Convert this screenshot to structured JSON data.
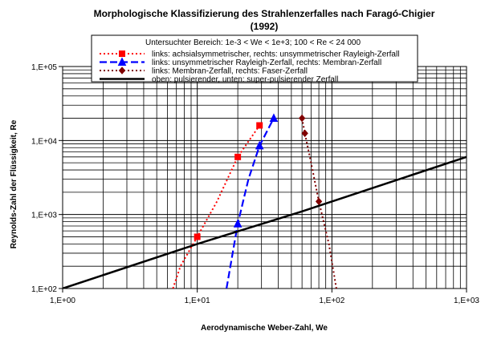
{
  "chart_data": {
    "type": "line",
    "title": "Morphologische Klassifizierung des Strahlenzerfalles nach Faragó-Chigier",
    "subtitle": "(1992)",
    "xlabel": "Aerodynamische Weber-Zahl,  We",
    "ylabel": "Reynolds-Zahl der Flüssigkeit,  Re",
    "xscale": "log",
    "yscale": "log",
    "xlim": [
      1,
      1000
    ],
    "ylim": [
      100,
      100000
    ],
    "xticks": [
      "1,E+00",
      "1,E+01",
      "1,E+02",
      "1,E+03"
    ],
    "yticks": [
      "1,E+02",
      "1,E+03",
      "1,E+04",
      "1,E+05"
    ],
    "grid": true,
    "legend_position": "top",
    "legend_note": "Untersuchter Bereich: 1e-3 < We < 1e+3; 100 < Re < 24 000",
    "series": [
      {
        "name": "links: achsialsymmetrischer, rechts: unsymmetrischer Rayleigh-Zerfall",
        "color": "#ff0000",
        "dash": "dotted",
        "marker": "square",
        "x": [
          6.6,
          7.5,
          10,
          14,
          20,
          29
        ],
        "y": [
          100,
          200,
          500,
          1500,
          6000,
          16000
        ],
        "markers_x": [
          10,
          20,
          29
        ],
        "markers_y": [
          500,
          6000,
          16000
        ]
      },
      {
        "name": "links: unsymmetrischer Rayleigh-Zerfall, rechts: Membran-Zerfall",
        "color": "#0000ff",
        "dash": "dashed",
        "marker": "triangle",
        "x": [
          16.5,
          20,
          24,
          29,
          37
        ],
        "y": [
          100,
          750,
          3000,
          8500,
          20000
        ],
        "markers_x": [
          20,
          29,
          37
        ],
        "markers_y": [
          750,
          8500,
          20000
        ]
      },
      {
        "name": "links: Membran-Zerfall, rechts: Faser-Zerfall",
        "color": "#800000",
        "dash": "dotted",
        "marker": "diamond",
        "x": [
          60,
          63,
          70,
          80,
          95,
          108
        ],
        "y": [
          20000,
          12500,
          5000,
          1500,
          400,
          100
        ],
        "markers_x": [
          60,
          63,
          80
        ],
        "markers_y": [
          20000,
          12500,
          1500
        ]
      },
      {
        "name": "oben: pulsierender, unten: super-pulsierender Zerfall",
        "color": "#000000",
        "dash": "solid",
        "marker": "none",
        "x": [
          1,
          10,
          60,
          100,
          1000
        ],
        "y": [
          100,
          400,
          1100,
          1500,
          6000
        ],
        "markers_x": [],
        "markers_y": []
      }
    ]
  }
}
